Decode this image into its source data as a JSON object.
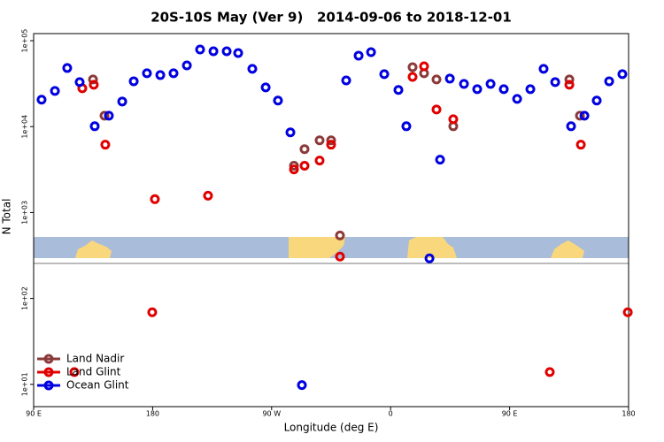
{
  "chart_data": {
    "type": "scatter",
    "title": "20S-10S May (Ver 9)   2014-09-06 to 2018-12-01",
    "xlabel": "Longitude (deg E)",
    "ylabel": "N Total",
    "log_y": true,
    "legend": "lower left",
    "xlim": [
      90,
      540
    ],
    "ylim": [
      5.5,
      121000
    ],
    "xticks": [
      {
        "value": 90,
        "label": "90 E"
      },
      180,
      {
        "value": 270,
        "label": "90 W"
      },
      {
        "value": 360,
        "label": "0"
      },
      {
        "value": 450,
        "label": "90 E"
      },
      {
        "value": 540,
        "label": "180"
      }
    ],
    "yticks": [
      {
        "value": 10,
        "label": "1e+01"
      },
      {
        "value": 100,
        "label": "1e+02"
      },
      {
        "value": 1000,
        "label": "1e+03"
      },
      {
        "value": 10000,
        "label": "1e+04"
      },
      {
        "value": 100000,
        "label": "1e+05"
      }
    ],
    "series": [
      {
        "name": "Land Nadir",
        "color": "#8b3a3a",
        "x": [
          134.9,
          143.6,
          286.9,
          294.9,
          306.3,
          315.0,
          321.7,
          376.6,
          385.3,
          394.7,
          407.4,
          495.2,
          503.2
        ],
        "values": [
          35400,
          13400,
          3500,
          5470,
          6930,
          6930,
          541,
          49200,
          41800,
          35400,
          10100,
          35400,
          13400
        ]
      },
      {
        "name": "Land Glint",
        "color": "#e00000",
        "x": [
          126.8,
          135.5,
          144.2,
          181.7,
          221.9,
          286.9,
          294.9,
          306.3,
          315.0,
          321.7,
          376.6,
          385.3,
          394.7,
          407.4,
          495.2,
          503.9,
          179.7,
          539.4,
          480.4,
          120.8
        ],
        "values": [
          27900,
          30700,
          6160,
          1430,
          1570,
          3180,
          3500,
          4030,
          6160,
          307,
          37900,
          50400,
          15800,
          12200,
          30700,
          6160,
          69,
          69,
          13.9,
          13.9
        ]
      },
      {
        "name": "Ocean Glint",
        "color": "#0000e0",
        "x": [
          96.0,
          106.1,
          115.4,
          124.8,
          136.2,
          146.9,
          157.0,
          165.7,
          175.7,
          185.8,
          195.8,
          205.9,
          215.9,
          226.0,
          236.0,
          244.7,
          255.4,
          265.5,
          274.8,
          284.2,
          292.9,
          326.4,
          335.8,
          345.2,
          355.2,
          365.9,
          371.9,
          389.4,
          397.4,
          404.8,
          415.5,
          425.5,
          435.6,
          445.6,
          455.7,
          465.7,
          475.7,
          484.5,
          496.5,
          506.6,
          515.9,
          525.3,
          535.3
        ],
        "values": [
          20600,
          26000,
          48100,
          33000,
          10100,
          13400,
          19600,
          33700,
          41800,
          39800,
          41800,
          51600,
          78900,
          75300,
          75300,
          71800,
          47000,
          28600,
          20100,
          8570,
          9.8,
          34500,
          67000,
          73600,
          40800,
          26700,
          10100,
          293,
          4120,
          36200,
          31400,
          27300,
          31400,
          27300,
          21000,
          27300,
          47000,
          33000,
          10100,
          13400,
          20100,
          33700,
          40800
        ]
      }
    ]
  }
}
